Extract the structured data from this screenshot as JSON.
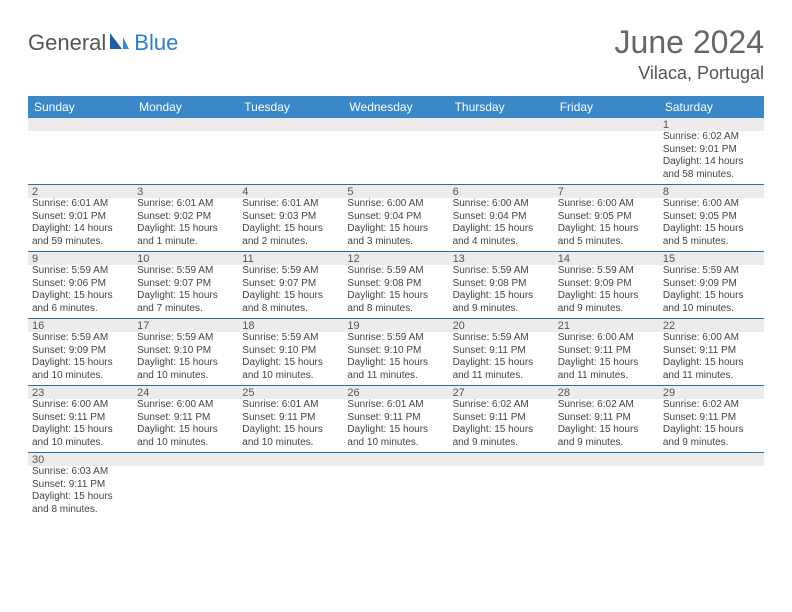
{
  "brand": {
    "part1": "General",
    "part2": "Blue"
  },
  "title": "June 2024",
  "location": "Vilaca, Portugal",
  "colors": {
    "header_bg": "#3b88c9",
    "row_separator": "#2a6fa8",
    "daynum_bg": "#ececec",
    "logo_blue": "#2a7fc9",
    "text": "#444444"
  },
  "dow": [
    "Sunday",
    "Monday",
    "Tuesday",
    "Wednesday",
    "Thursday",
    "Friday",
    "Saturday"
  ],
  "weeks": [
    [
      {
        "n": "",
        "d": ""
      },
      {
        "n": "",
        "d": ""
      },
      {
        "n": "",
        "d": ""
      },
      {
        "n": "",
        "d": ""
      },
      {
        "n": "",
        "d": ""
      },
      {
        "n": "",
        "d": ""
      },
      {
        "n": "1",
        "d": "Sunrise: 6:02 AM\nSunset: 9:01 PM\nDaylight: 14 hours and 58 minutes."
      }
    ],
    [
      {
        "n": "2",
        "d": "Sunrise: 6:01 AM\nSunset: 9:01 PM\nDaylight: 14 hours and 59 minutes."
      },
      {
        "n": "3",
        "d": "Sunrise: 6:01 AM\nSunset: 9:02 PM\nDaylight: 15 hours and 1 minute."
      },
      {
        "n": "4",
        "d": "Sunrise: 6:01 AM\nSunset: 9:03 PM\nDaylight: 15 hours and 2 minutes."
      },
      {
        "n": "5",
        "d": "Sunrise: 6:00 AM\nSunset: 9:04 PM\nDaylight: 15 hours and 3 minutes."
      },
      {
        "n": "6",
        "d": "Sunrise: 6:00 AM\nSunset: 9:04 PM\nDaylight: 15 hours and 4 minutes."
      },
      {
        "n": "7",
        "d": "Sunrise: 6:00 AM\nSunset: 9:05 PM\nDaylight: 15 hours and 5 minutes."
      },
      {
        "n": "8",
        "d": "Sunrise: 6:00 AM\nSunset: 9:05 PM\nDaylight: 15 hours and 5 minutes."
      }
    ],
    [
      {
        "n": "9",
        "d": "Sunrise: 5:59 AM\nSunset: 9:06 PM\nDaylight: 15 hours and 6 minutes."
      },
      {
        "n": "10",
        "d": "Sunrise: 5:59 AM\nSunset: 9:07 PM\nDaylight: 15 hours and 7 minutes."
      },
      {
        "n": "11",
        "d": "Sunrise: 5:59 AM\nSunset: 9:07 PM\nDaylight: 15 hours and 8 minutes."
      },
      {
        "n": "12",
        "d": "Sunrise: 5:59 AM\nSunset: 9:08 PM\nDaylight: 15 hours and 8 minutes."
      },
      {
        "n": "13",
        "d": "Sunrise: 5:59 AM\nSunset: 9:08 PM\nDaylight: 15 hours and 9 minutes."
      },
      {
        "n": "14",
        "d": "Sunrise: 5:59 AM\nSunset: 9:09 PM\nDaylight: 15 hours and 9 minutes."
      },
      {
        "n": "15",
        "d": "Sunrise: 5:59 AM\nSunset: 9:09 PM\nDaylight: 15 hours and 10 minutes."
      }
    ],
    [
      {
        "n": "16",
        "d": "Sunrise: 5:59 AM\nSunset: 9:09 PM\nDaylight: 15 hours and 10 minutes."
      },
      {
        "n": "17",
        "d": "Sunrise: 5:59 AM\nSunset: 9:10 PM\nDaylight: 15 hours and 10 minutes."
      },
      {
        "n": "18",
        "d": "Sunrise: 5:59 AM\nSunset: 9:10 PM\nDaylight: 15 hours and 10 minutes."
      },
      {
        "n": "19",
        "d": "Sunrise: 5:59 AM\nSunset: 9:10 PM\nDaylight: 15 hours and 11 minutes."
      },
      {
        "n": "20",
        "d": "Sunrise: 5:59 AM\nSunset: 9:11 PM\nDaylight: 15 hours and 11 minutes."
      },
      {
        "n": "21",
        "d": "Sunrise: 6:00 AM\nSunset: 9:11 PM\nDaylight: 15 hours and 11 minutes."
      },
      {
        "n": "22",
        "d": "Sunrise: 6:00 AM\nSunset: 9:11 PM\nDaylight: 15 hours and 11 minutes."
      }
    ],
    [
      {
        "n": "23",
        "d": "Sunrise: 6:00 AM\nSunset: 9:11 PM\nDaylight: 15 hours and 10 minutes."
      },
      {
        "n": "24",
        "d": "Sunrise: 6:00 AM\nSunset: 9:11 PM\nDaylight: 15 hours and 10 minutes."
      },
      {
        "n": "25",
        "d": "Sunrise: 6:01 AM\nSunset: 9:11 PM\nDaylight: 15 hours and 10 minutes."
      },
      {
        "n": "26",
        "d": "Sunrise: 6:01 AM\nSunset: 9:11 PM\nDaylight: 15 hours and 10 minutes."
      },
      {
        "n": "27",
        "d": "Sunrise: 6:02 AM\nSunset: 9:11 PM\nDaylight: 15 hours and 9 minutes."
      },
      {
        "n": "28",
        "d": "Sunrise: 6:02 AM\nSunset: 9:11 PM\nDaylight: 15 hours and 9 minutes."
      },
      {
        "n": "29",
        "d": "Sunrise: 6:02 AM\nSunset: 9:11 PM\nDaylight: 15 hours and 9 minutes."
      }
    ],
    [
      {
        "n": "30",
        "d": "Sunrise: 6:03 AM\nSunset: 9:11 PM\nDaylight: 15 hours and 8 minutes."
      },
      {
        "n": "",
        "d": ""
      },
      {
        "n": "",
        "d": ""
      },
      {
        "n": "",
        "d": ""
      },
      {
        "n": "",
        "d": ""
      },
      {
        "n": "",
        "d": ""
      },
      {
        "n": "",
        "d": ""
      }
    ]
  ]
}
